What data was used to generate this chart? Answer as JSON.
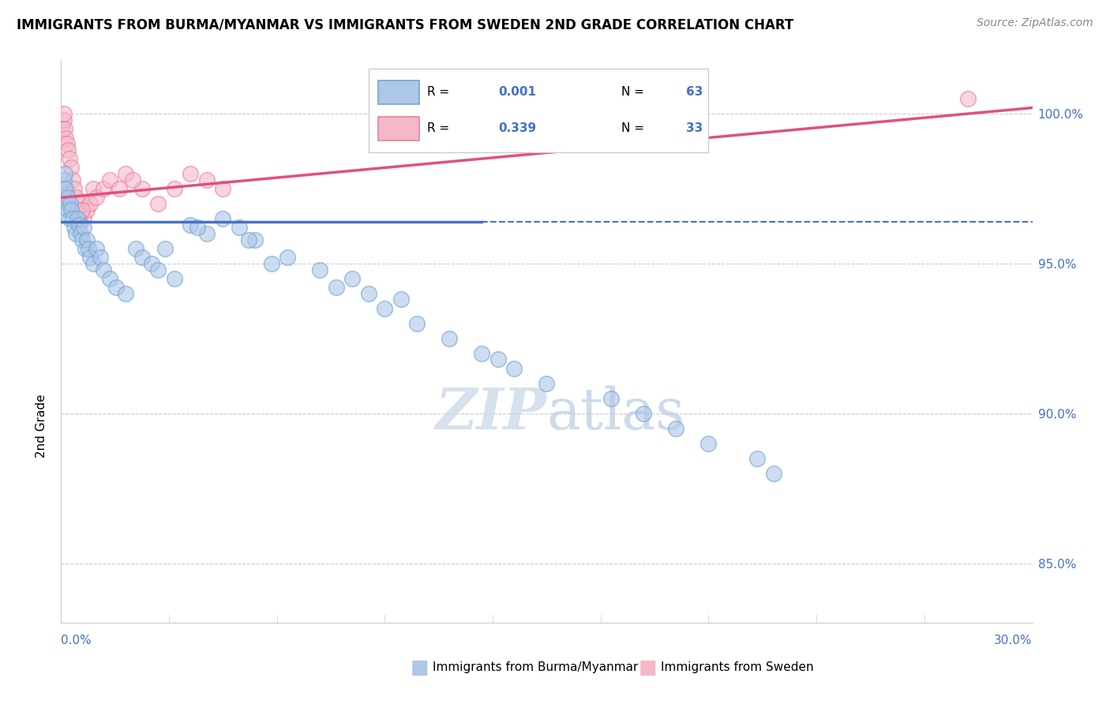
{
  "title": "IMMIGRANTS FROM BURMA/MYANMAR VS IMMIGRANTS FROM SWEDEN 2ND GRADE CORRELATION CHART",
  "source": "Source: ZipAtlas.com",
  "ylabel": "2nd Grade",
  "xlim": [
    0.0,
    30.0
  ],
  "ylim": [
    83.0,
    101.8
  ],
  "right_yticks": [
    85.0,
    90.0,
    95.0,
    100.0
  ],
  "right_ytick_labels": [
    "85.0%",
    "90.0%",
    "95.0%",
    "100.0%"
  ],
  "legend_R1": "0.001",
  "legend_N1": "63",
  "legend_R2": "0.339",
  "legend_N2": "33",
  "blue_scatter_color": "#aec6e8",
  "pink_scatter_color": "#f4b8c8",
  "blue_edge_color": "#6fa8d0",
  "pink_edge_color": "#e87fa0",
  "trend_blue": "#4472c4",
  "trend_pink": "#e05080",
  "legend_text_color": "#4472c4",
  "watermark_color": "#d8e4f0",
  "blue_x": [
    0.05,
    0.08,
    0.1,
    0.12,
    0.15,
    0.18,
    0.2,
    0.22,
    0.25,
    0.28,
    0.3,
    0.35,
    0.4,
    0.45,
    0.5,
    0.55,
    0.6,
    0.65,
    0.7,
    0.75,
    0.8,
    0.85,
    0.9,
    1.0,
    1.1,
    1.2,
    1.3,
    1.5,
    1.7,
    2.0,
    2.3,
    2.5,
    2.8,
    3.0,
    3.5,
    4.0,
    4.5,
    5.0,
    5.5,
    6.0,
    7.0,
    8.0,
    9.0,
    10.0,
    11.0,
    12.0,
    13.0,
    14.0,
    15.0,
    17.0,
    18.0,
    19.0,
    20.0,
    21.5,
    22.0,
    3.2,
    4.2,
    5.8,
    6.5,
    8.5,
    9.5,
    10.5,
    13.5
  ],
  "blue_y": [
    97.2,
    97.5,
    97.8,
    98.0,
    97.5,
    97.0,
    97.2,
    96.8,
    96.5,
    97.0,
    96.8,
    96.5,
    96.2,
    96.0,
    96.5,
    96.3,
    96.0,
    95.8,
    96.2,
    95.5,
    95.8,
    95.5,
    95.2,
    95.0,
    95.5,
    95.2,
    94.8,
    94.5,
    94.2,
    94.0,
    95.5,
    95.2,
    95.0,
    94.8,
    94.5,
    96.3,
    96.0,
    96.5,
    96.2,
    95.8,
    95.2,
    94.8,
    94.5,
    93.5,
    93.0,
    92.5,
    92.0,
    91.5,
    91.0,
    90.5,
    90.0,
    89.5,
    89.0,
    88.5,
    88.0,
    95.5,
    96.2,
    95.8,
    95.0,
    94.2,
    94.0,
    93.8,
    91.8
  ],
  "pink_x": [
    0.05,
    0.08,
    0.1,
    0.12,
    0.15,
    0.18,
    0.2,
    0.25,
    0.3,
    0.35,
    0.4,
    0.45,
    0.5,
    0.6,
    0.7,
    0.8,
    0.9,
    1.0,
    1.1,
    1.3,
    1.5,
    2.0,
    2.5,
    3.0,
    3.5,
    4.0,
    4.5,
    5.0,
    0.55,
    0.65,
    1.8,
    2.2,
    28.0
  ],
  "pink_y": [
    99.5,
    99.8,
    100.0,
    99.5,
    99.2,
    99.0,
    98.8,
    98.5,
    98.2,
    97.8,
    97.5,
    97.2,
    96.8,
    97.0,
    96.5,
    96.8,
    97.0,
    97.5,
    97.2,
    97.5,
    97.8,
    98.0,
    97.5,
    97.0,
    97.5,
    98.0,
    97.8,
    97.5,
    96.5,
    96.8,
    97.5,
    97.8,
    100.5
  ],
  "blue_trend_x": [
    0,
    30
  ],
  "blue_trend_y": [
    96.4,
    96.4
  ],
  "blue_solid_end": 13.0,
  "pink_trend_x": [
    0,
    30
  ],
  "pink_trend_y": [
    97.2,
    100.2
  ]
}
